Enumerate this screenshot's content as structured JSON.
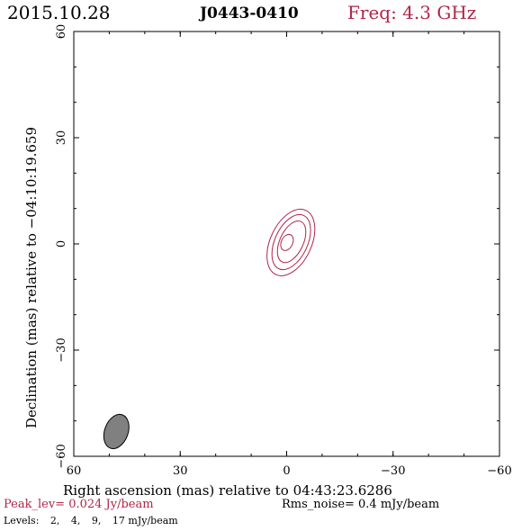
{
  "header": {
    "date": "2015.10.28",
    "source": "J0443-0410",
    "freq": "Freq: 4.3 GHz"
  },
  "footer": {
    "peak": "Peak_lev=  0.024 Jy/beam",
    "rms": "Rms_noise=   0.4 mJy/beam",
    "levels_label": "Levels:",
    "levels": [
      "2,",
      "4,",
      "9,",
      "17 mJy/beam"
    ]
  },
  "colors": {
    "accent": "#b0264a",
    "beam": "#808080"
  },
  "chart_data": {
    "type": "contour",
    "xlabel": "Right ascension (mas) relative to 04:43:23.6286",
    "ylabel": "Declination (mas) relative to −04:10:19.659",
    "xlim": [
      60,
      -60
    ],
    "ylim": [
      -60,
      60
    ],
    "xticks": [
      60,
      30,
      0,
      -30,
      -60
    ],
    "yticks": [
      -60,
      -30,
      0,
      30,
      60
    ],
    "xtick_labels": [
      "60",
      "30",
      "0",
      "−30",
      "−60"
    ],
    "ytick_labels": [
      "−60",
      "−30",
      "0",
      "30",
      "60"
    ],
    "contours": [
      {
        "level": 2,
        "x": -1.2,
        "y": 0.4,
        "a": 10.0,
        "b": 5.8,
        "pa": 25
      },
      {
        "level": 4,
        "x": -1.3,
        "y": 0.5,
        "a": 8.3,
        "b": 4.6,
        "pa": 25
      },
      {
        "level": 9,
        "x": -1.4,
        "y": 0.6,
        "a": 6.3,
        "b": 3.3,
        "pa": 25
      },
      {
        "level": 17,
        "x": -0.1,
        "y": 0.4,
        "a": 2.4,
        "b": 1.6,
        "pa": 25
      }
    ],
    "beam": {
      "x": 48,
      "y": -53,
      "a": 5.0,
      "b": 3.3,
      "pa": 20
    }
  }
}
